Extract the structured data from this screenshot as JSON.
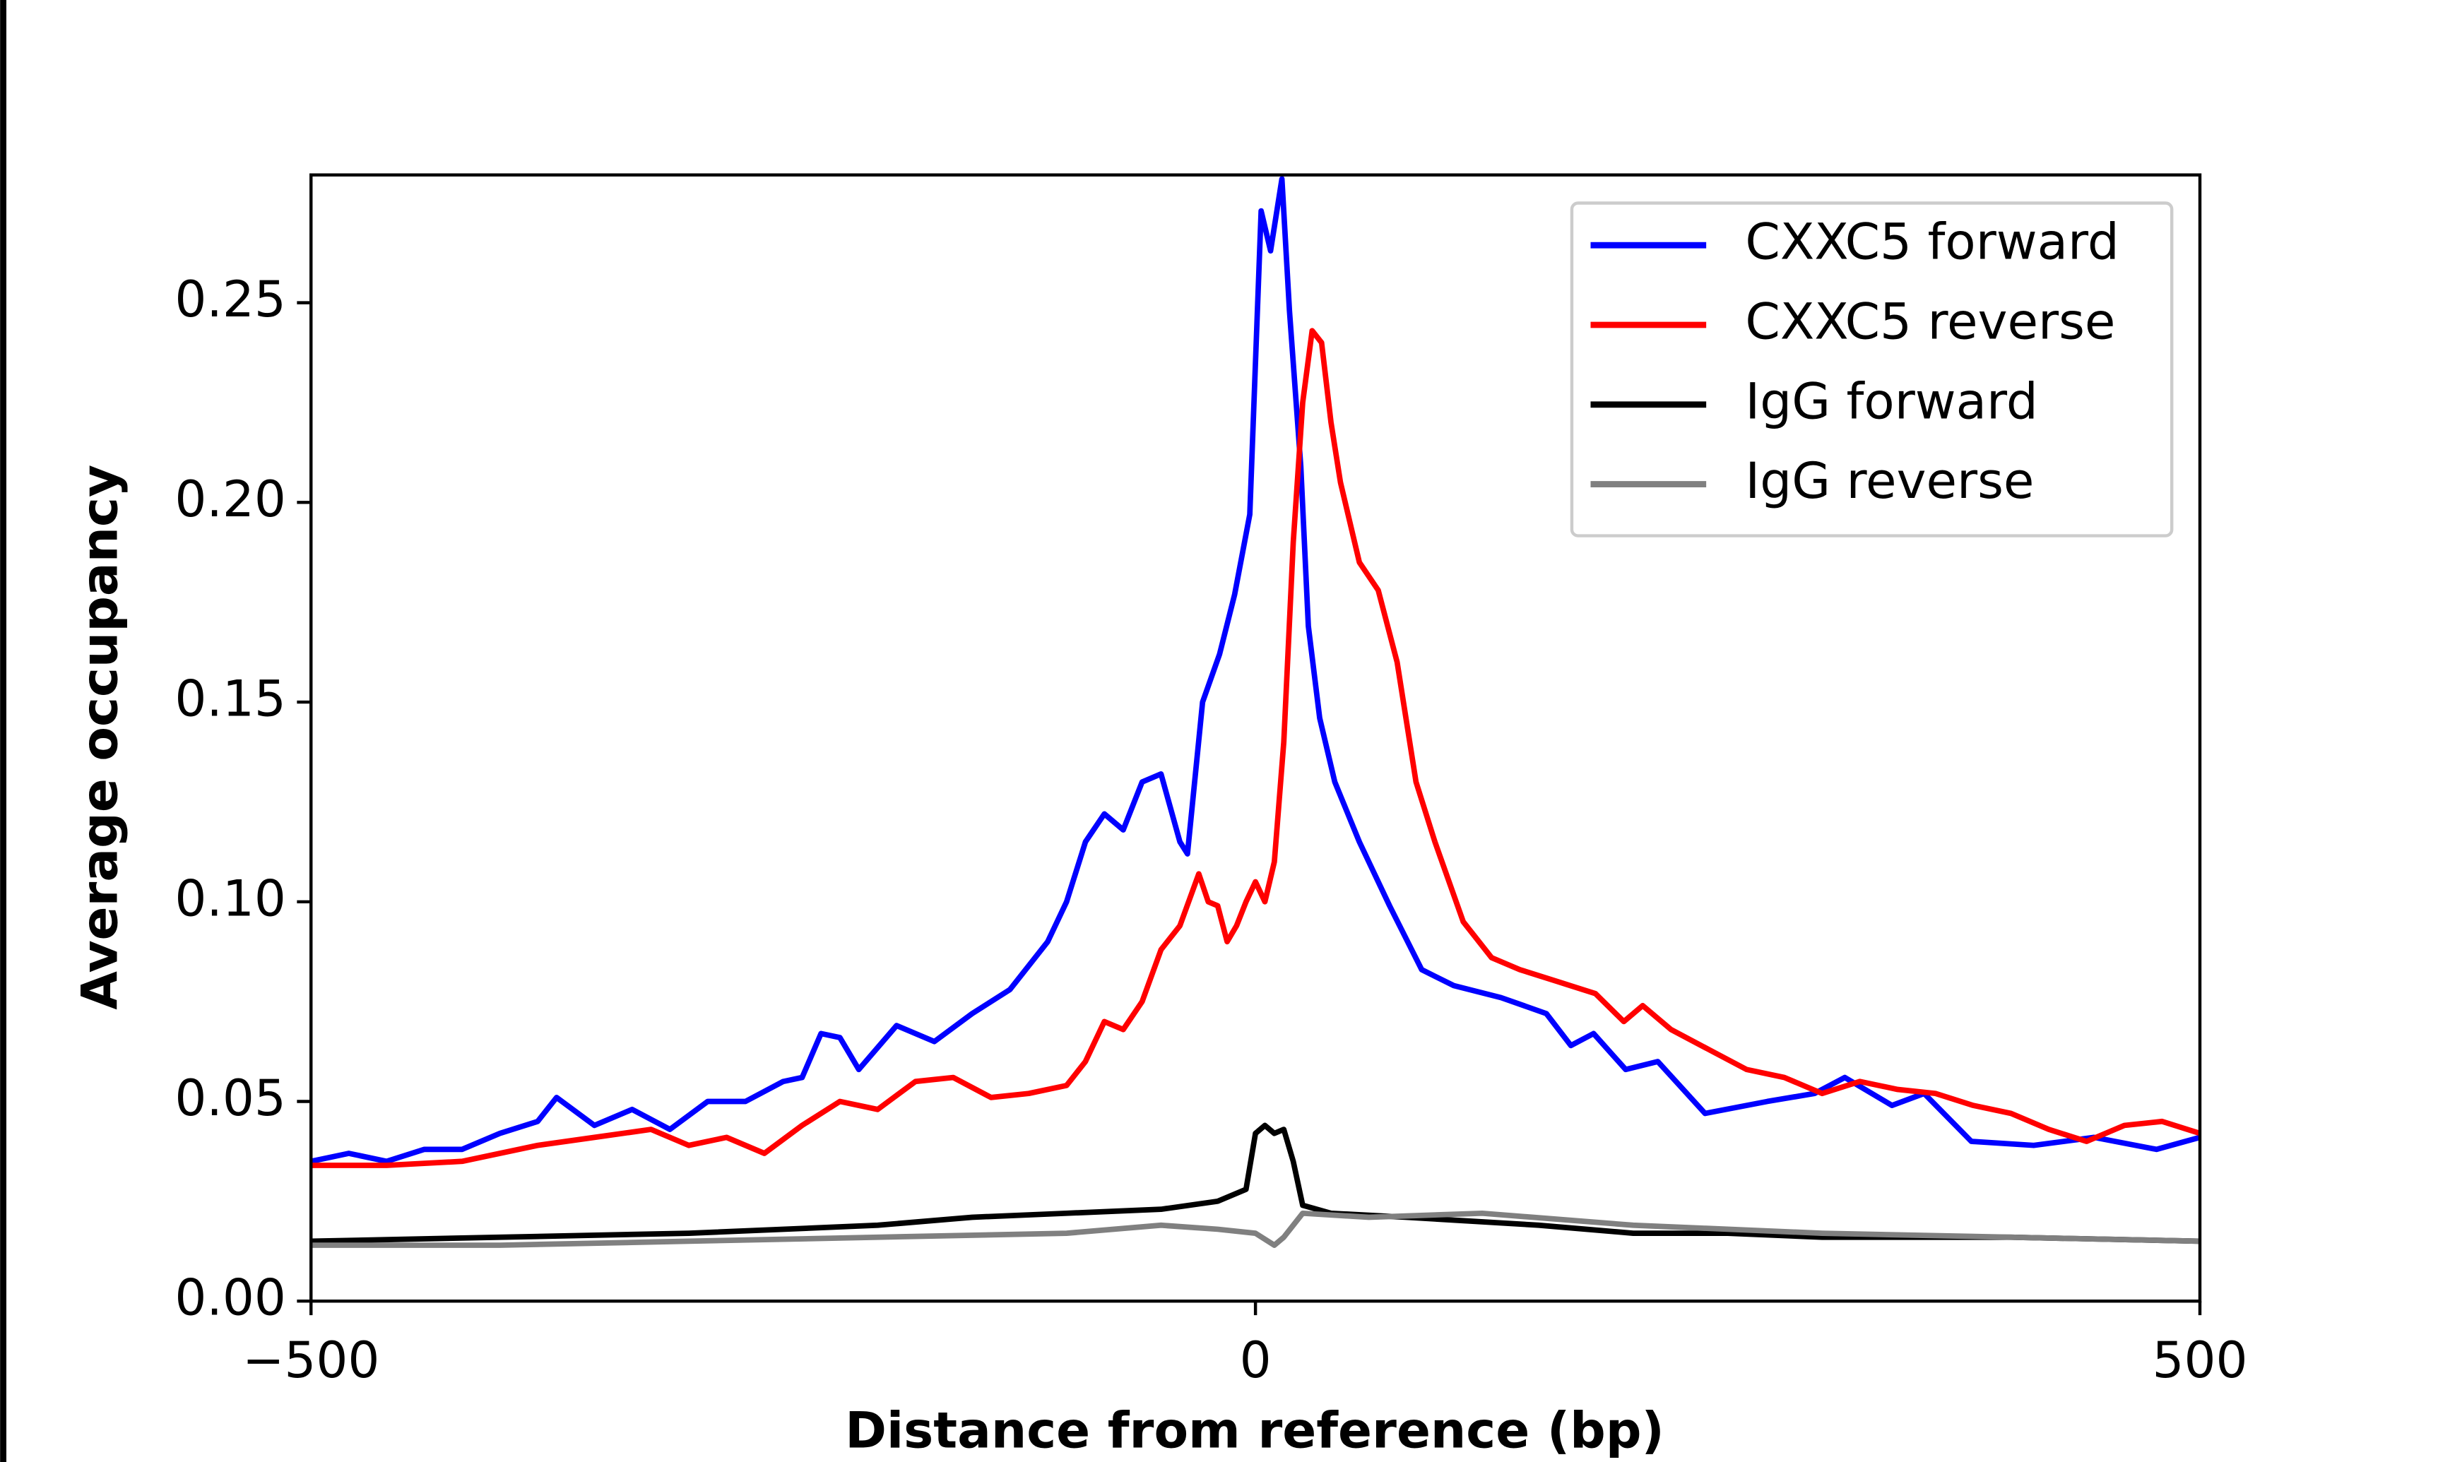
{
  "chart_data": {
    "type": "line",
    "x_label": "Distance from reference (bp)",
    "y_label": "Average occupancy",
    "xlim": [
      -500,
      500
    ],
    "ylim": [
      0,
      0.282
    ],
    "xticks": [
      {
        "value": -500,
        "label": "−500"
      },
      0,
      500
    ],
    "yticks": [
      {
        "value": 0,
        "label": "0.00"
      },
      {
        "value": 0.05,
        "label": "0.05"
      },
      {
        "value": 0.1,
        "label": "0.10"
      },
      {
        "value": 0.15,
        "label": "0.15"
      },
      {
        "value": 0.2,
        "label": "0.20"
      },
      {
        "value": 0.25,
        "label": "0.25"
      }
    ],
    "legend": "upper right",
    "series": [
      {
        "name": "CXXC5 forward",
        "color": "#0000ff",
        "x": [
          -500,
          -480,
          -460,
          -440,
          -420,
          -400,
          -380,
          -370,
          -350,
          -330,
          -310,
          -290,
          -270,
          -250,
          -240,
          -230,
          -220,
          -210,
          -190,
          -170,
          -150,
          -130,
          -110,
          -100,
          -90,
          -80,
          -70,
          -60,
          -50,
          -40,
          -36,
          -28,
          -19,
          -11,
          -3,
          3,
          8,
          14,
          18,
          24,
          28,
          34,
          42,
          55,
          71,
          88,
          105,
          130,
          154,
          167,
          179,
          196,
          213,
          238,
          271,
          296,
          312,
          337,
          354,
          379,
          412,
          444,
          477,
          500
        ],
        "values": [
          0.035,
          0.037,
          0.035,
          0.038,
          0.038,
          0.042,
          0.045,
          0.051,
          0.044,
          0.048,
          0.043,
          0.05,
          0.05,
          0.055,
          0.056,
          0.067,
          0.066,
          0.058,
          0.069,
          0.065,
          0.072,
          0.078,
          0.09,
          0.1,
          0.115,
          0.122,
          0.118,
          0.13,
          0.132,
          0.115,
          0.112,
          0.15,
          0.162,
          0.177,
          0.197,
          0.273,
          0.263,
          0.281,
          0.248,
          0.209,
          0.169,
          0.146,
          0.13,
          0.115,
          0.099,
          0.083,
          0.079,
          0.076,
          0.072,
          0.064,
          0.067,
          0.058,
          0.06,
          0.047,
          0.05,
          0.052,
          0.056,
          0.049,
          0.052,
          0.04,
          0.039,
          0.041,
          0.038,
          0.041
        ]
      },
      {
        "name": "CXXC5 reverse",
        "color": "#ff0000",
        "x": [
          -500,
          -460,
          -420,
          -380,
          -350,
          -320,
          -300,
          -280,
          -260,
          -240,
          -220,
          -200,
          -180,
          -160,
          -140,
          -120,
          -100,
          -90,
          -80,
          -70,
          -60,
          -50,
          -40,
          -30,
          -25,
          -20,
          -15,
          -10,
          -5,
          0,
          5,
          10,
          15,
          20,
          25,
          30,
          35,
          40,
          45,
          55,
          65,
          75,
          85,
          95,
          110,
          125,
          140,
          160,
          180,
          195,
          205,
          220,
          240,
          260,
          280,
          300,
          320,
          340,
          360,
          380,
          400,
          420,
          440,
          460,
          480,
          500
        ],
        "values": [
          0.034,
          0.034,
          0.035,
          0.039,
          0.041,
          0.043,
          0.039,
          0.041,
          0.037,
          0.044,
          0.05,
          0.048,
          0.055,
          0.056,
          0.051,
          0.052,
          0.054,
          0.06,
          0.07,
          0.068,
          0.075,
          0.088,
          0.094,
          0.107,
          0.1,
          0.099,
          0.09,
          0.094,
          0.1,
          0.105,
          0.1,
          0.11,
          0.14,
          0.19,
          0.225,
          0.243,
          0.24,
          0.22,
          0.205,
          0.185,
          0.178,
          0.16,
          0.13,
          0.115,
          0.095,
          0.086,
          0.083,
          0.08,
          0.077,
          0.07,
          0.074,
          0.068,
          0.063,
          0.058,
          0.056,
          0.052,
          0.055,
          0.053,
          0.052,
          0.049,
          0.047,
          0.043,
          0.04,
          0.044,
          0.045,
          0.042
        ]
      },
      {
        "name": "IgG forward",
        "color": "#000000",
        "x": [
          -500,
          -400,
          -300,
          -200,
          -150,
          -100,
          -50,
          -20,
          -5,
          0,
          5,
          10,
          15,
          20,
          25,
          40,
          80,
          150,
          200,
          250,
          300,
          400,
          500
        ],
        "values": [
          0.015,
          0.016,
          0.017,
          0.019,
          0.021,
          0.022,
          0.023,
          0.025,
          0.028,
          0.042,
          0.044,
          0.042,
          0.043,
          0.035,
          0.024,
          0.022,
          0.021,
          0.019,
          0.017,
          0.017,
          0.016,
          0.016,
          0.015
        ]
      },
      {
        "name": "IgG reverse",
        "color": "#808080",
        "x": [
          -500,
          -400,
          -300,
          -200,
          -100,
          -50,
          -20,
          0,
          10,
          15,
          25,
          60,
          120,
          200,
          300,
          400,
          500
        ],
        "values": [
          0.014,
          0.014,
          0.015,
          0.016,
          0.017,
          0.019,
          0.018,
          0.017,
          0.014,
          0.016,
          0.022,
          0.021,
          0.022,
          0.019,
          0.017,
          0.016,
          0.015
        ]
      }
    ]
  }
}
